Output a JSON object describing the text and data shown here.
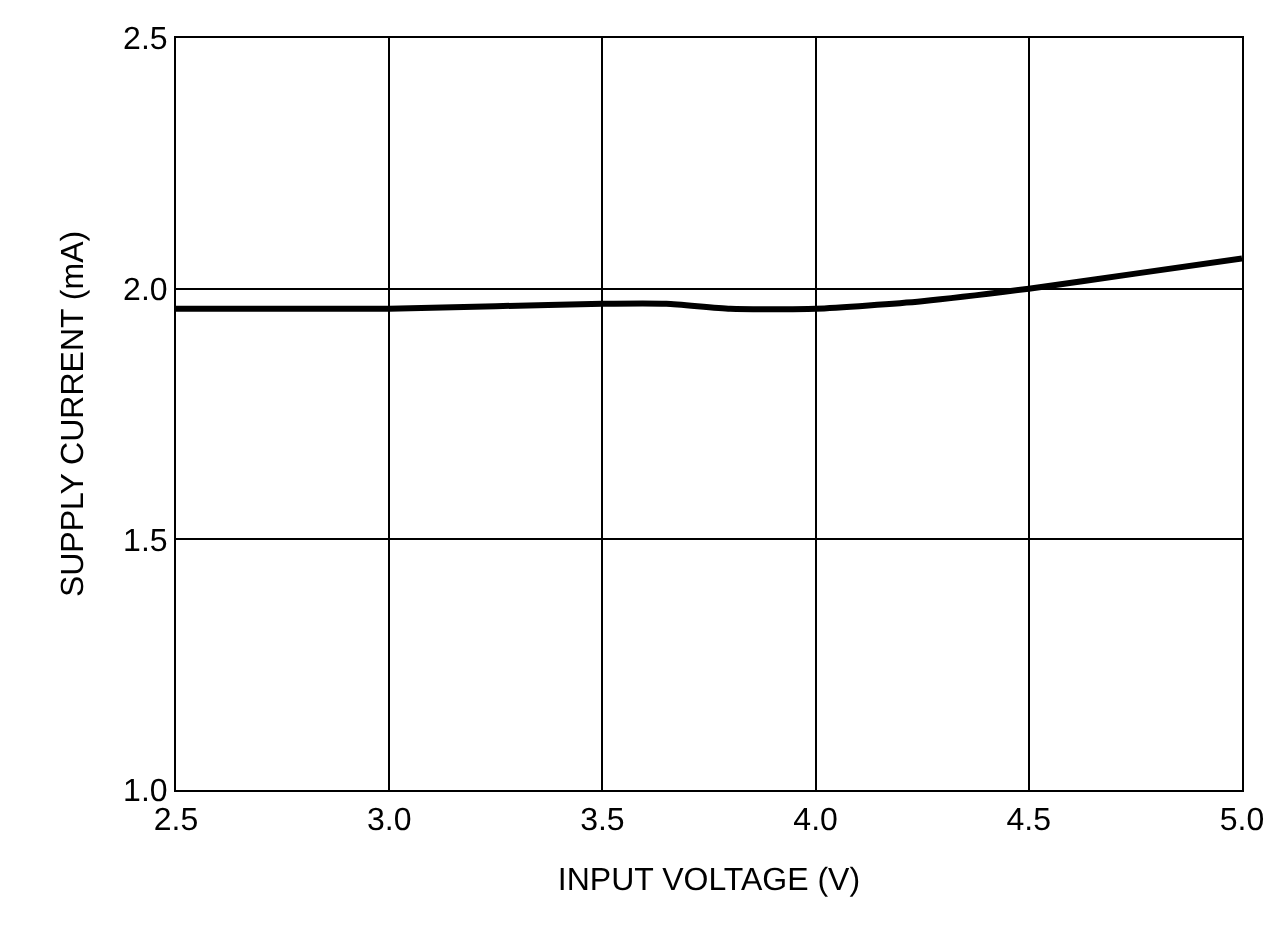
{
  "chart_data": {
    "type": "line",
    "xlabel": "INPUT VOLTAGE (V)",
    "ylabel": "SUPPLY CURRENT (mA)",
    "x": [
      2.5,
      2.75,
      3.0,
      3.25,
      3.5,
      3.65,
      3.8,
      4.0,
      4.25,
      4.5,
      4.75,
      5.0
    ],
    "series": [
      {
        "color": "#000000",
        "values": [
          1.96,
          1.96,
          1.96,
          1.965,
          1.97,
          1.97,
          1.96,
          1.96,
          1.975,
          2.0,
          2.03,
          2.06
        ]
      }
    ],
    "xlim": [
      2.5,
      5.0
    ],
    "xticks": [
      2.5,
      {
        "value": 3,
        "label": "3.0"
      },
      3.5,
      {
        "value": 4,
        "label": "4.0"
      },
      4.5,
      {
        "value": 5,
        "label": "5.0"
      }
    ],
    "ylim": [
      1.0,
      2.5
    ],
    "yticks": [
      {
        "value": 1,
        "label": "1.0"
      },
      1.5,
      {
        "value": 2,
        "label": "2.0"
      },
      2.5
    ],
    "grid": true,
    "legend": false,
    "marker": "none",
    "line_style": "solid"
  }
}
